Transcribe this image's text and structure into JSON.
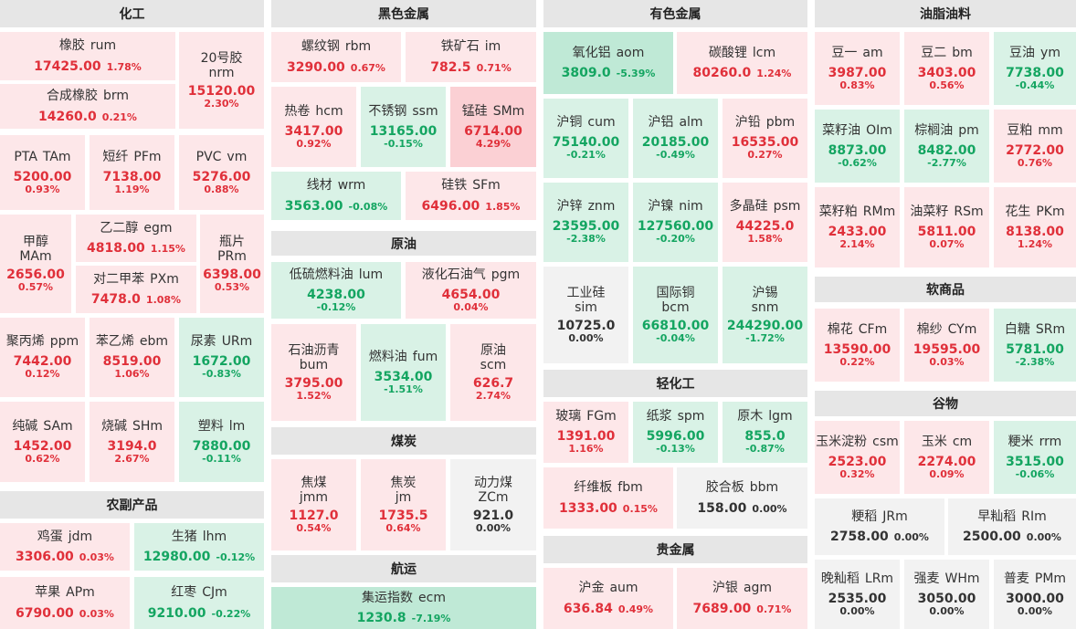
{
  "sections": [
    {
      "id": "chemicals",
      "title": "化工"
    },
    {
      "id": "ferrous",
      "title": "黑色金属"
    },
    {
      "id": "nonferrous",
      "title": "有色金属"
    },
    {
      "id": "oils",
      "title": "油脂油料"
    },
    {
      "id": "crude",
      "title": "原油"
    },
    {
      "id": "coal",
      "title": "煤炭"
    },
    {
      "id": "shipping",
      "title": "航运"
    },
    {
      "id": "agri",
      "title": "农副产品"
    },
    {
      "id": "light",
      "title": "轻化工"
    },
    {
      "id": "precious",
      "title": "贵金属"
    },
    {
      "id": "softs",
      "title": "软商品"
    },
    {
      "id": "grains",
      "title": "谷物"
    }
  ],
  "cells": [
    {
      "name": "橡胶",
      "code": "rum",
      "price": "17425.00",
      "pct": "1.78%",
      "dir": "up"
    },
    {
      "name": "20号胶",
      "code": "nrm",
      "price": "15120.00",
      "pct": "2.30%",
      "dir": "up"
    },
    {
      "name": "合成橡胶",
      "code": "brm",
      "price": "14260.0",
      "pct": "0.21%",
      "dir": "up"
    },
    {
      "name": "PTA",
      "code": "TAm",
      "price": "5200.00",
      "pct": "0.93%",
      "dir": "up"
    },
    {
      "name": "短纤",
      "code": "PFm",
      "price": "7138.00",
      "pct": "1.19%",
      "dir": "up"
    },
    {
      "name": "PVC",
      "code": "vm",
      "price": "5276.00",
      "pct": "0.88%",
      "dir": "up"
    },
    {
      "name": "甲醇",
      "code": "MAm",
      "price": "2656.00",
      "pct": "0.57%",
      "dir": "up"
    },
    {
      "name": "乙二醇",
      "code": "egm",
      "price": "4818.00",
      "pct": "1.15%",
      "dir": "up"
    },
    {
      "name": "瓶片",
      "code": "PRm",
      "price": "6398.00",
      "pct": "0.53%",
      "dir": "up"
    },
    {
      "name": "对二甲苯",
      "code": "PXm",
      "price": "7478.0",
      "pct": "1.08%",
      "dir": "up"
    },
    {
      "name": "聚丙烯",
      "code": "ppm",
      "price": "7442.00",
      "pct": "0.12%",
      "dir": "up"
    },
    {
      "name": "苯乙烯",
      "code": "ebm",
      "price": "8519.00",
      "pct": "1.06%",
      "dir": "up"
    },
    {
      "name": "尿素",
      "code": "URm",
      "price": "1672.00",
      "pct": "-0.83%",
      "dir": "dn"
    },
    {
      "name": "纯碱",
      "code": "SAm",
      "price": "1452.00",
      "pct": "0.62%",
      "dir": "up"
    },
    {
      "name": "烧碱",
      "code": "SHm",
      "price": "3194.0",
      "pct": "2.67%",
      "dir": "up"
    },
    {
      "name": "塑料",
      "code": "lm",
      "price": "7880.00",
      "pct": "-0.11%",
      "dir": "dn"
    },
    {
      "name": "鸡蛋",
      "code": "jdm",
      "price": "3306.00",
      "pct": "0.03%",
      "dir": "up"
    },
    {
      "name": "生猪",
      "code": "lhm",
      "price": "12980.00",
      "pct": "-0.12%",
      "dir": "dn"
    },
    {
      "name": "苹果",
      "code": "APm",
      "price": "6790.00",
      "pct": "0.03%",
      "dir": "up"
    },
    {
      "name": "红枣",
      "code": "CJm",
      "price": "9210.00",
      "pct": "-0.22%",
      "dir": "dn"
    },
    {
      "name": "螺纹钢",
      "code": "rbm",
      "price": "3290.00",
      "pct": "0.67%",
      "dir": "up"
    },
    {
      "name": "铁矿石",
      "code": "im",
      "price": "782.5",
      "pct": "0.71%",
      "dir": "up"
    },
    {
      "name": "热卷",
      "code": "hcm",
      "price": "3417.00",
      "pct": "0.92%",
      "dir": "up"
    },
    {
      "name": "不锈钢",
      "code": "ssm",
      "price": "13165.00",
      "pct": "-0.15%",
      "dir": "dn"
    },
    {
      "name": "锰硅",
      "code": "SMm",
      "price": "6714.00",
      "pct": "4.29%",
      "dir": "up2"
    },
    {
      "name": "线材",
      "code": "wrm",
      "price": "3563.00",
      "pct": "-0.08%",
      "dir": "dn"
    },
    {
      "name": "硅铁",
      "code": "SFm",
      "price": "6496.00",
      "pct": "1.85%",
      "dir": "up"
    },
    {
      "name": "低硫燃料油",
      "code": "lum",
      "price": "4238.00",
      "pct": "-0.12%",
      "dir": "dn"
    },
    {
      "name": "液化石油气",
      "code": "pgm",
      "price": "4654.00",
      "pct": "0.04%",
      "dir": "up"
    },
    {
      "name": "石油沥青",
      "code": "bum",
      "price": "3795.00",
      "pct": "1.52%",
      "dir": "up"
    },
    {
      "name": "燃料油",
      "code": "fum",
      "price": "3534.00",
      "pct": "-1.51%",
      "dir": "dn"
    },
    {
      "name": "原油",
      "code": "scm",
      "price": "626.7",
      "pct": "2.74%",
      "dir": "up"
    },
    {
      "name": "焦煤",
      "code": "jmm",
      "price": "1127.0",
      "pct": "0.54%",
      "dir": "up"
    },
    {
      "name": "焦炭",
      "code": "jm",
      "price": "1735.5",
      "pct": "0.64%",
      "dir": "up"
    },
    {
      "name": "动力煤",
      "code": "ZCm",
      "price": "921.0",
      "pct": "0.00%",
      "dir": "flat"
    },
    {
      "name": "集运指数",
      "code": "ecm",
      "price": "1230.8",
      "pct": "-7.19%",
      "dir": "dn2"
    },
    {
      "name": "氧化铝",
      "code": "aom",
      "price": "3809.0",
      "pct": "-5.39%",
      "dir": "dn2"
    },
    {
      "name": "碳酸锂",
      "code": "lcm",
      "price": "80260.0",
      "pct": "1.24%",
      "dir": "up"
    },
    {
      "name": "沪铜",
      "code": "cum",
      "price": "75140.00",
      "pct": "-0.21%",
      "dir": "dn"
    },
    {
      "name": "沪铝",
      "code": "alm",
      "price": "20185.00",
      "pct": "-0.49%",
      "dir": "dn"
    },
    {
      "name": "沪铅",
      "code": "pbm",
      "price": "16535.00",
      "pct": "0.27%",
      "dir": "up"
    },
    {
      "name": "沪锌",
      "code": "znm",
      "price": "23595.00",
      "pct": "-2.38%",
      "dir": "dn"
    },
    {
      "name": "沪镍",
      "code": "nim",
      "price": "127560.00",
      "pct": "-0.20%",
      "dir": "dn"
    },
    {
      "name": "多晶硅",
      "code": "psm",
      "price": "44225.0",
      "pct": "1.58%",
      "dir": "up"
    },
    {
      "name": "工业硅",
      "code": "sim",
      "price": "10725.0",
      "pct": "0.00%",
      "dir": "flat"
    },
    {
      "name": "国际铜",
      "code": "bcm",
      "price": "66810.00",
      "pct": "-0.04%",
      "dir": "dn"
    },
    {
      "name": "沪锡",
      "code": "snm",
      "price": "244290.00",
      "pct": "-1.72%",
      "dir": "dn"
    },
    {
      "name": "玻璃",
      "code": "FGm",
      "price": "1391.00",
      "pct": "1.16%",
      "dir": "up"
    },
    {
      "name": "纸浆",
      "code": "spm",
      "price": "5996.00",
      "pct": "-0.13%",
      "dir": "dn"
    },
    {
      "name": "原木",
      "code": "lgm",
      "price": "855.0",
      "pct": "-0.87%",
      "dir": "dn"
    },
    {
      "name": "纤维板",
      "code": "fbm",
      "price": "1333.00",
      "pct": "0.15%",
      "dir": "up"
    },
    {
      "name": "胶合板",
      "code": "bbm",
      "price": "158.00",
      "pct": "0.00%",
      "dir": "flat"
    },
    {
      "name": "沪金",
      "code": "aum",
      "price": "636.84",
      "pct": "0.49%",
      "dir": "up"
    },
    {
      "name": "沪银",
      "code": "agm",
      "price": "7689.00",
      "pct": "0.71%",
      "dir": "up"
    },
    {
      "name": "豆一",
      "code": "am",
      "price": "3987.00",
      "pct": "0.83%",
      "dir": "up"
    },
    {
      "name": "豆二",
      "code": "bm",
      "price": "3403.00",
      "pct": "0.56%",
      "dir": "up"
    },
    {
      "name": "豆油",
      "code": "ym",
      "price": "7738.00",
      "pct": "-0.44%",
      "dir": "dn"
    },
    {
      "name": "菜籽油",
      "code": "OIm",
      "price": "8873.00",
      "pct": "-0.62%",
      "dir": "dn"
    },
    {
      "name": "棕榈油",
      "code": "pm",
      "price": "8482.00",
      "pct": "-2.77%",
      "dir": "dn"
    },
    {
      "name": "豆粕",
      "code": "mm",
      "price": "2772.00",
      "pct": "0.76%",
      "dir": "up"
    },
    {
      "name": "菜籽粕",
      "code": "RMm",
      "price": "2433.00",
      "pct": "2.14%",
      "dir": "up"
    },
    {
      "name": "油菜籽",
      "code": "RSm",
      "price": "5811.00",
      "pct": "0.07%",
      "dir": "up"
    },
    {
      "name": "花生",
      "code": "PKm",
      "price": "8138.00",
      "pct": "1.24%",
      "dir": "up"
    },
    {
      "name": "棉花",
      "code": "CFm",
      "price": "13590.00",
      "pct": "0.22%",
      "dir": "up"
    },
    {
      "name": "棉纱",
      "code": "CYm",
      "price": "19595.00",
      "pct": "0.03%",
      "dir": "up"
    },
    {
      "name": "白糖",
      "code": "SRm",
      "price": "5781.00",
      "pct": "-2.38%",
      "dir": "dn"
    },
    {
      "name": "玉米淀粉",
      "code": "csm",
      "price": "2523.00",
      "pct": "0.32%",
      "dir": "up"
    },
    {
      "name": "玉米",
      "code": "cm",
      "price": "2274.00",
      "pct": "0.09%",
      "dir": "up"
    },
    {
      "name": "粳米",
      "code": "rrm",
      "price": "3515.00",
      "pct": "-0.06%",
      "dir": "dn"
    },
    {
      "name": "粳稻",
      "code": "JRm",
      "price": "2758.00",
      "pct": "0.00%",
      "dir": "flat"
    },
    {
      "name": "早籼稻",
      "code": "RIm",
      "price": "2500.00",
      "pct": "0.00%",
      "dir": "flat"
    },
    {
      "name": "晚籼稻",
      "code": "LRm",
      "price": "2535.00",
      "pct": "0.00%",
      "dir": "flat"
    },
    {
      "name": "强麦",
      "code": "WHm",
      "price": "3050.00",
      "pct": "0.00%",
      "dir": "flat"
    },
    {
      "name": "普麦",
      "code": "PMm",
      "price": "3000.00",
      "pct": "0.00%",
      "dir": "flat"
    }
  ]
}
